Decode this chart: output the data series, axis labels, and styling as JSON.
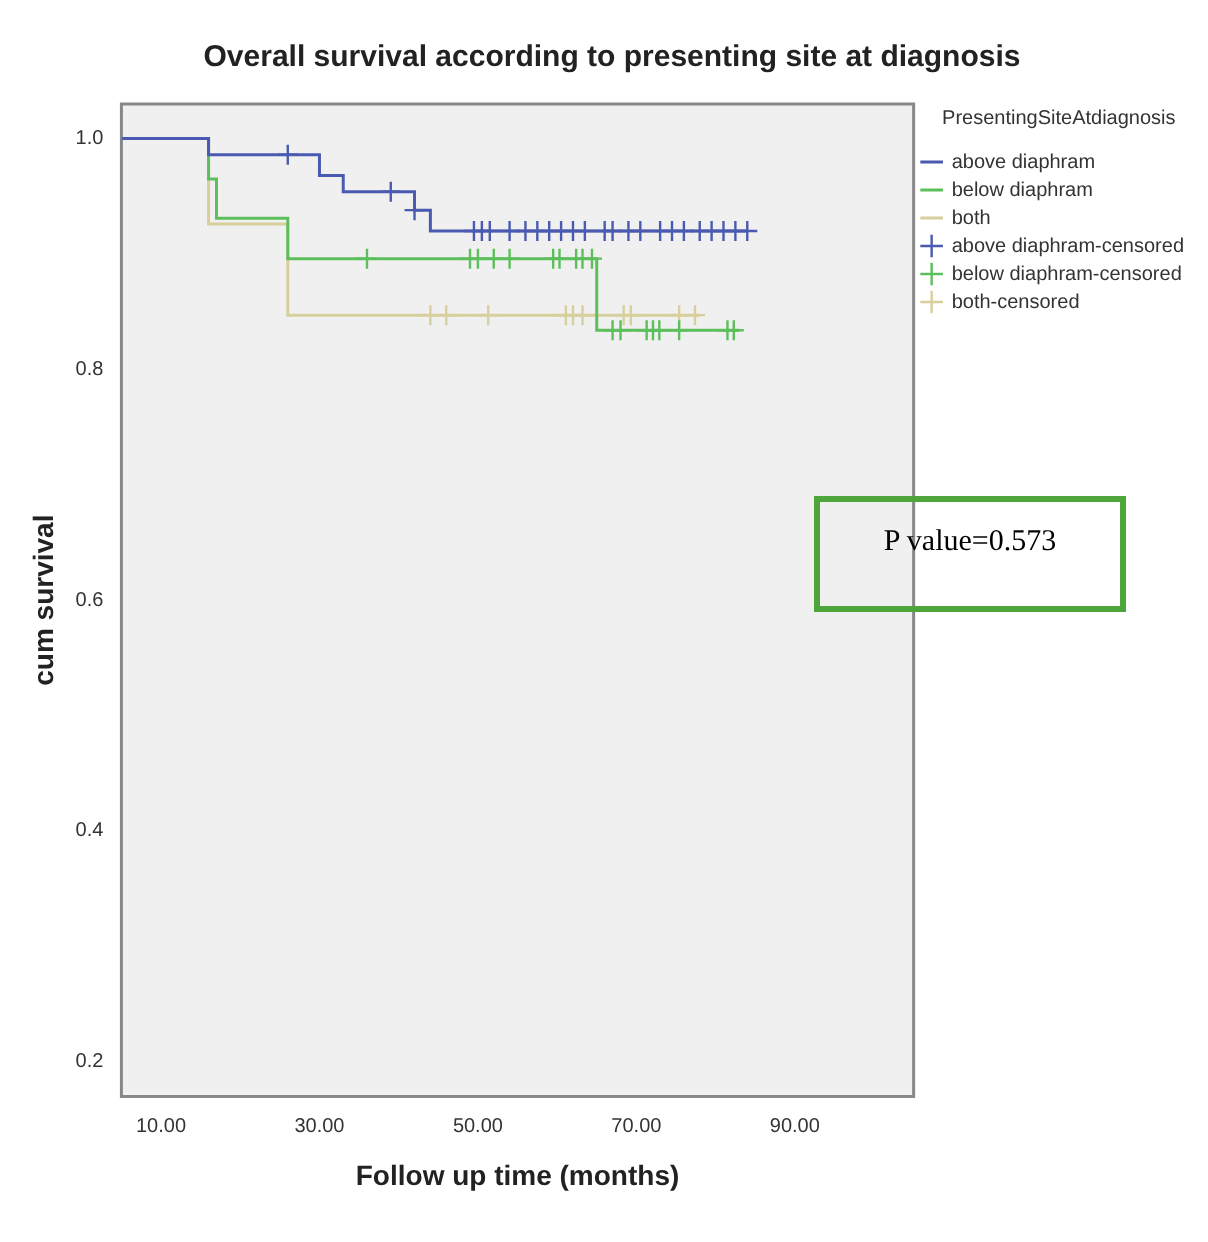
{
  "chart_data": {
    "type": "step",
    "title": "Overall survival according to presenting site at diagnosis",
    "xlabel": "Follow up time (months)",
    "ylabel": "cum survival",
    "legend_title": "PresentingSiteAtdiagnosis",
    "legend": "right",
    "annotations": [
      "P value=0.573"
    ],
    "xlim": [
      5,
      105
    ],
    "xticks": [
      {
        "value": 10,
        "label": "10.00"
      },
      {
        "value": 30,
        "label": "30.00"
      },
      {
        "value": 50,
        "label": "50.00"
      },
      {
        "value": 70,
        "label": "70.00"
      },
      {
        "value": 90,
        "label": "90.00"
      }
    ],
    "ylim": [
      0.17,
      1.03
    ],
    "yticks": [
      {
        "value": 0.2,
        "label": "0.2"
      },
      {
        "value": 0.4,
        "label": "0.4"
      },
      {
        "value": 0.6,
        "label": "0.6"
      },
      {
        "value": 0.8,
        "label": "0.8"
      },
      {
        "value": 1,
        "label": "1.0"
      }
    ],
    "series": [
      {
        "name": "above diaphram",
        "color": "#4a5ab0",
        "x": [
          5,
          16,
          30,
          33,
          42,
          44,
          84
        ],
        "values": [
          1,
          0.986,
          0.968,
          0.954,
          0.938,
          0.92,
          0.92
        ]
      },
      {
        "name": "below diaphram",
        "color": "#5cbf5c",
        "x": [
          5,
          16,
          17,
          26,
          65,
          83
        ],
        "values": [
          1,
          0.965,
          0.931,
          0.896,
          0.834,
          0.834
        ]
      },
      {
        "name": "both",
        "color": "#d8d09c",
        "x": [
          5,
          16,
          26,
          78
        ],
        "values": [
          1,
          0.926,
          0.847,
          0.847
        ]
      },
      {
        "name": "above diaphram-censored",
        "type": "scatter",
        "marker": "cross",
        "color": "#4a5ab0",
        "x": [
          26,
          39,
          42,
          49.5,
          50.5,
          51.5,
          54,
          56,
          57.5,
          59,
          60.5,
          62,
          63.5,
          66,
          67,
          69,
          70.5,
          73,
          74.5,
          76,
          78,
          79.5,
          81,
          82.5,
          84
        ],
        "values": [
          0.986,
          0.954,
          0.938,
          0.92,
          0.92,
          0.92,
          0.92,
          0.92,
          0.92,
          0.92,
          0.92,
          0.92,
          0.92,
          0.92,
          0.92,
          0.92,
          0.92,
          0.92,
          0.92,
          0.92,
          0.92,
          0.92,
          0.92,
          0.92,
          0.92
        ]
      },
      {
        "name": "below diaphram-censored",
        "type": "scatter",
        "marker": "cross",
        "color": "#5cbf5c",
        "x": [
          36,
          49,
          50,
          52,
          54,
          59.5,
          60.3,
          62.4,
          63.2,
          64.4,
          67,
          68,
          71.3,
          72.1,
          72.9,
          75.4,
          81.5,
          82.3
        ],
        "values": [
          0.896,
          0.896,
          0.896,
          0.896,
          0.896,
          0.896,
          0.896,
          0.896,
          0.896,
          0.896,
          0.834,
          0.834,
          0.834,
          0.834,
          0.834,
          0.834,
          0.834,
          0.834
        ]
      },
      {
        "name": "both-censored",
        "type": "scatter",
        "marker": "cross",
        "color": "#d8d09c",
        "x": [
          44,
          46,
          51.3,
          61.1,
          62,
          63.2,
          68.4,
          69.3,
          75.4,
          77.4
        ],
        "values": [
          0.847,
          0.847,
          0.847,
          0.847,
          0.847,
          0.847,
          0.847,
          0.847,
          0.847,
          0.847
        ]
      }
    ]
  }
}
